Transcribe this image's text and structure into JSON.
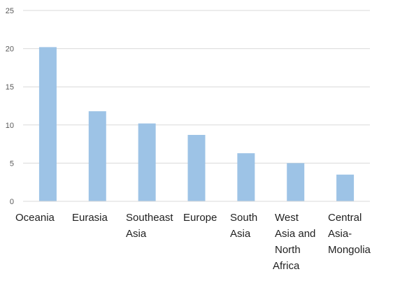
{
  "chart_data": {
    "type": "bar",
    "title": "",
    "xlabel": "",
    "ylabel": "",
    "ylim": [
      0,
      25
    ],
    "yticks": [
      0,
      5,
      10,
      15,
      20,
      25
    ],
    "grid": true,
    "legend": "none",
    "bar_color": "#9dc3e6",
    "grid_color": "#d9d9d9",
    "categories": [
      "Oceania",
      "Eurasia",
      "Southeast Asia",
      "Europe",
      "South Asia",
      "West Asia and North Africa",
      "Central Asia-Mongolia"
    ],
    "category_label_lines": [
      [
        "Oceania"
      ],
      [
        "Eurasia"
      ],
      [
        "Southeast",
        "Asia"
      ],
      [
        "Europe"
      ],
      [
        "South",
        "Asia"
      ],
      [
        "West",
        "Asia and",
        "North",
        "Africa"
      ],
      [
        "Central",
        "Asia-",
        "Mongolia"
      ]
    ],
    "values": [
      20.2,
      11.8,
      10.2,
      8.7,
      6.3,
      5.0,
      3.5
    ]
  }
}
